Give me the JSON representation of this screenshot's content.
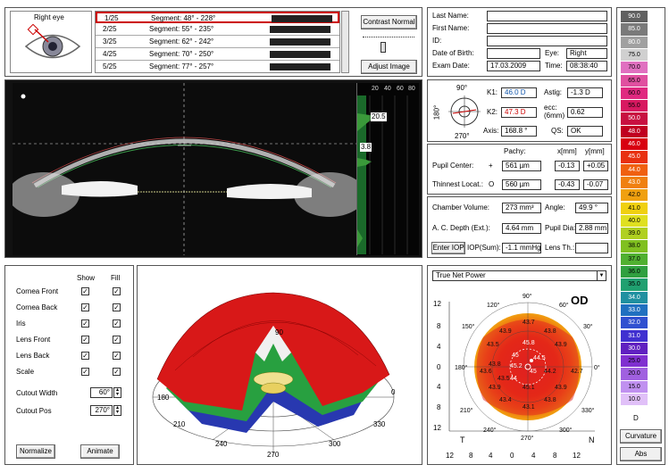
{
  "eye_panel": {
    "label": "Right eye"
  },
  "segments": [
    {
      "index": "1/25",
      "label": "Segment: 48° - 228°"
    },
    {
      "index": "2/25",
      "label": "Segment: 55° - 235°"
    },
    {
      "index": "3/25",
      "label": "Segment: 62° - 242°"
    },
    {
      "index": "4/25",
      "label": "Segment: 70° - 250°"
    },
    {
      "index": "5/25",
      "label": "Segment: 77° - 257°"
    }
  ],
  "buttons": {
    "contrast": "Contrast Normal",
    "adjust": "Adjust Image",
    "normalize": "Normalize",
    "animate": "Animate",
    "enter_iop": "Enter IOP"
  },
  "scheimpflug": {
    "scale_ticks": [
      "20",
      "40",
      "60",
      "80"
    ],
    "density1": "20.5",
    "density2": "3.8"
  },
  "patient": {
    "last_name_label": "Last Name:",
    "last_name": "",
    "first_name_label": "First Name:",
    "first_name": "",
    "id_label": "ID:",
    "id": "",
    "dob_label": "Date of Birth:",
    "dob": "",
    "eye_label": "Eye:",
    "eye": "Right",
    "exam_label": "Exam Date:",
    "exam_date": "17.03.2009",
    "time_label": "Time:",
    "time": "08:38:40"
  },
  "keratometry": {
    "k1_label": "K1:",
    "k1": "46.0 D",
    "astig_label": "Astig:",
    "astig": "-1.3 D",
    "k2_label": "K2:",
    "k2": "47.3 D",
    "ecc_label": "ecc:\n(6mm)",
    "ecc": "0.62",
    "axis_label": "Axis:",
    "axis": "168.8 °",
    "qs_label": "QS:",
    "qs": "OK",
    "dial_top": "90°",
    "dial_left": "180°",
    "dial_bottom": "270°"
  },
  "pachy": {
    "pachy_label": "Pachy:",
    "x_label": "x[mm]",
    "y_label": "y[mm]",
    "pupil_label": "Pupil Center:",
    "pupil_sym": "+",
    "pupil_pachy": "561 µm",
    "pupil_x": "-0.13",
    "pupil_y": "+0.05",
    "thin_label": "Thinnest Locat.:",
    "thin_sym": "O",
    "thin_pachy": "560 µm",
    "thin_x": "-0.43",
    "thin_y": "-0.07"
  },
  "chamber": {
    "vol_label": "Chamber Volume:",
    "vol": "273 mm³",
    "angle_label": "Angle:",
    "angle": "49.9 °",
    "acd_label": "A. C. Depth (Ext.):",
    "acd": "4.64 mm",
    "pupil_label": "Pupil Dia:",
    "pupil": "2.88 mm",
    "iop_label": "IOP(Sum):",
    "iop": "-1.1 mmHg",
    "lens_label": "Lens Th.:",
    "lens": ""
  },
  "layers": {
    "show_header": "Show",
    "fill_header": "Fill",
    "items": [
      "Cornea Front",
      "Cornea Back",
      "Iris",
      "Lens Front",
      "Lens Back",
      "Scale"
    ],
    "cutout_width_label": "Cutout Width",
    "cutout_width": "60°",
    "cutout_pos_label": "Cutout Pos",
    "cutout_pos": "270°"
  },
  "model3d": {
    "angles": [
      "90",
      "180",
      "210",
      "240",
      "270",
      "300",
      "330",
      "0"
    ]
  },
  "map": {
    "dropdown": "True Net Power",
    "eye": "OD",
    "y_ticks": [
      "12",
      "8",
      "4",
      "0",
      "4",
      "8",
      "12"
    ],
    "x_ticks": [
      "12",
      "8",
      "4",
      "0",
      "4",
      "8",
      "12"
    ],
    "angle_labels": [
      "90°",
      "120°",
      "150°",
      "180°",
      "210°",
      "240°",
      "270°",
      "300°",
      "330°",
      "0°",
      "60°",
      "30°"
    ],
    "values": [
      "43.7",
      "43.9",
      "43.8",
      "45.8",
      "43.5",
      "43.9",
      "45",
      "44.5",
      "45.2",
      "43.8",
      "43.6",
      "45",
      "44.2",
      "42.7",
      "44",
      "45.1",
      "43.9",
      "43.9",
      "43.4",
      "43.8",
      "43.1",
      "43.5"
    ],
    "T": "T",
    "N": "N"
  },
  "color_scale": {
    "values": [
      "90.0",
      "85.0",
      "80.0",
      "75.0",
      "70.0",
      "65.0",
      "60.0",
      "55.0",
      "50.0",
      "48.0",
      "46.0",
      "45.0",
      "44.0",
      "43.0",
      "42.0",
      "41.0",
      "40.0",
      "39.0",
      "38.0",
      "37.0",
      "36.0",
      "35.0",
      "34.0",
      "33.0",
      "32.0",
      "31.0",
      "30.0",
      "25.0",
      "20.0",
      "15.0",
      "10.0"
    ],
    "colors": [
      "#606060",
      "#7a7a7a",
      "#a0a0a0",
      "#d0d0d0",
      "#e070c0",
      "#e050a0",
      "#e02880",
      "#d81860",
      "#c81040",
      "#c00020",
      "#d80010",
      "#e83010",
      "#f06010",
      "#f08010",
      "#f0a010",
      "#f0d010",
      "#e0e020",
      "#b0d020",
      "#80c020",
      "#50b030",
      "#30a040",
      "#20a070",
      "#2090a0",
      "#2070c0",
      "#3050d0",
      "#4030d0",
      "#6020c0",
      "#8030d0",
      "#a060e0",
      "#c090f0",
      "#e0c0f8"
    ],
    "unit": "D",
    "mode": "Curvature",
    "abs": "Abs"
  }
}
